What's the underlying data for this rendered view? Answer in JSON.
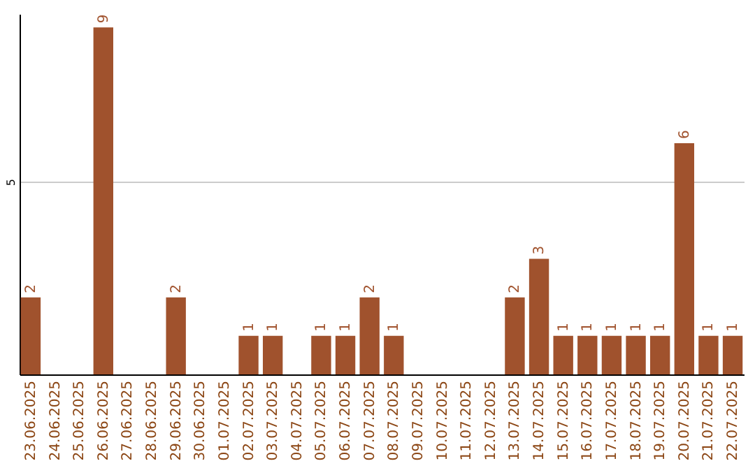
{
  "chart_data": {
    "type": "bar",
    "categories": [
      "23.06.2025",
      "24.06.2025",
      "25.06.2025",
      "26.06.2025",
      "27.06.2025",
      "28.06.2025",
      "29.06.2025",
      "30.06.2025",
      "01.07.2025",
      "02.07.2025",
      "03.07.2025",
      "04.07.2025",
      "05.07.2025",
      "06.07.2025",
      "07.07.2025",
      "08.07.2025",
      "09.07.2025",
      "10.07.2025",
      "11.07.2025",
      "12.07.2025",
      "13.07.2025",
      "14.07.2025",
      "15.07.2025",
      "16.07.2025",
      "17.07.2025",
      "18.07.2025",
      "19.07.2025",
      "20.07.2025",
      "21.07.2025",
      "22.07.2025"
    ],
    "values": [
      2,
      0,
      0,
      9,
      0,
      0,
      2,
      0,
      0,
      1,
      1,
      0,
      1,
      1,
      2,
      1,
      0,
      0,
      0,
      0,
      2,
      3,
      1,
      1,
      1,
      1,
      1,
      6,
      1,
      1
    ],
    "value_labels": [
      "2",
      null,
      null,
      "9",
      null,
      null,
      "2",
      null,
      null,
      "1",
      "1",
      null,
      "1",
      "1",
      "2",
      "1",
      null,
      null,
      null,
      null,
      "2",
      "3",
      "1",
      "1",
      "1",
      "1",
      "1",
      "6",
      "1",
      "1"
    ],
    "color": "#a0522d",
    "ylim": [
      0,
      9.35
    ],
    "yticks": [
      5
    ],
    "grid": "y"
  }
}
